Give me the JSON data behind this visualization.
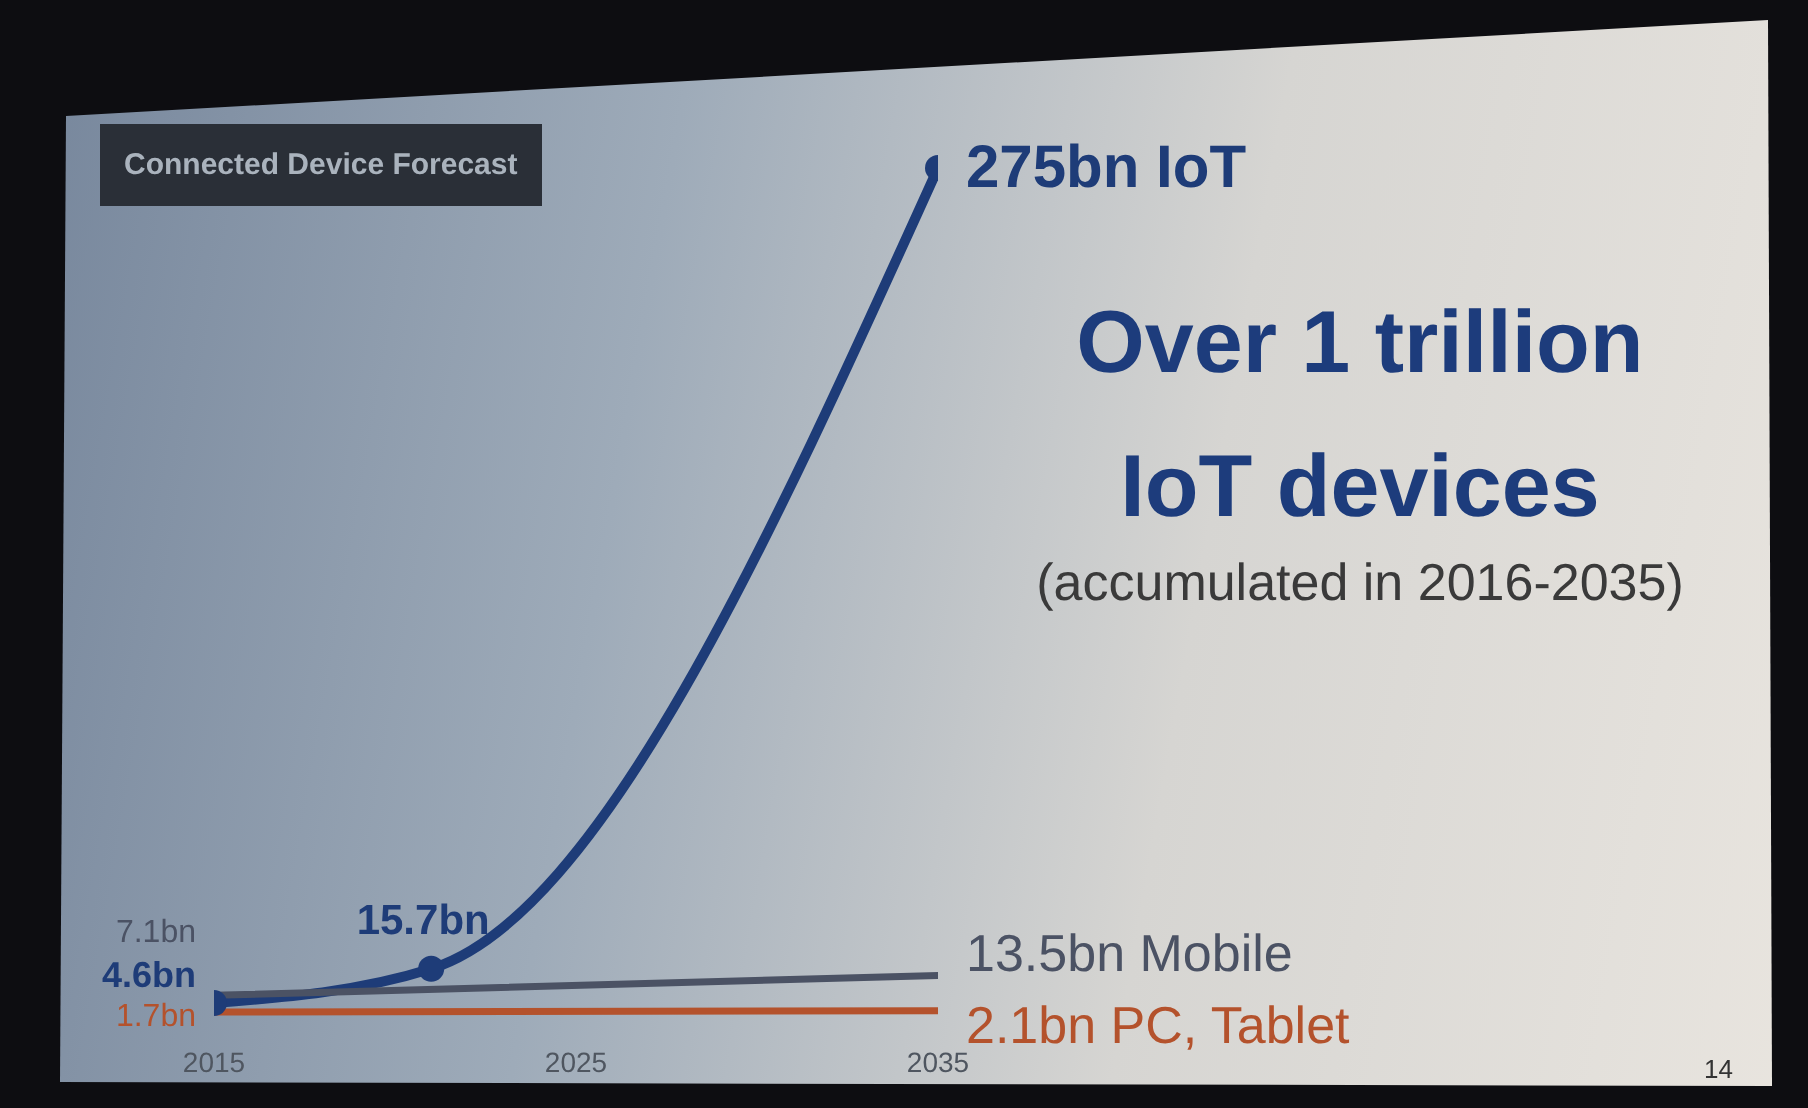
{
  "chart_data": {
    "type": "line",
    "title": "Connected Device Forecast",
    "annotations": [
      "Over 1 trillion IoT devices",
      "(accumulated in 2016-2035)",
      "14"
    ],
    "series": [
      {
        "name": "IoT",
        "color": "#1e3c78",
        "x": [
          2015,
          2021,
          2035
        ],
        "values": [
          4.6,
          15.7,
          275
        ],
        "value_labels": [
          "4.6bn",
          "15.7bn",
          "275bn"
        ],
        "marker": "circle"
      },
      {
        "name": "Mobile",
        "color": "#4b5264",
        "x": [
          2015,
          2035
        ],
        "values": [
          7.1,
          13.5
        ],
        "value_labels": [
          "7.1bn",
          "13.5bn"
        ]
      },
      {
        "name": "PC, Tablet",
        "color": "#b4522c",
        "x": [
          2015,
          2035
        ],
        "values": [
          1.7,
          2.1
        ],
        "value_labels": [
          "1.7bn",
          "2.1bn"
        ]
      }
    ],
    "xlim": [
      2015,
      2035
    ],
    "xticks": [
      2015,
      2025,
      2035
    ],
    "tick_labels": "x"
  }
}
